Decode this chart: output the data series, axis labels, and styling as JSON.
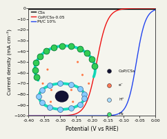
{
  "xlabel": "Potential (V vs RHE)",
  "ylabel": "Current density (mA cm⁻²)",
  "xlim": [
    -0.4,
    0.0
  ],
  "ylim": [
    -100,
    0
  ],
  "xticks": [
    -0.4,
    -0.35,
    -0.3,
    -0.25,
    -0.2,
    -0.15,
    -0.1,
    -0.05,
    0.0
  ],
  "yticks": [
    0,
    -10,
    -20,
    -30,
    -40,
    -50,
    -60,
    -70,
    -80,
    -90,
    -100
  ],
  "line_CSs_color": "#000000",
  "line_CoP_color": "#ee1111",
  "line_PtC_color": "#2244ee",
  "legend_entries": [
    "CSs",
    "CoP/CSs-0.05",
    "Pt/C 10%"
  ],
  "inset_legend": [
    "CoP/CSs",
    "e⁻",
    "H⁺",
    "H₂"
  ],
  "inset_dot_colors": [
    "#111133",
    "#ff7755",
    "#aaddff",
    "#44dd77"
  ],
  "arc_color": "#00ddbb",
  "green_dot_color": "#33cc55",
  "green_dot_edge": "#007733",
  "blue_dot_color": "#88ccff",
  "blue_dot_edge": "#336699",
  "center_color": "#111133",
  "orange_dot_color": "#ff7744",
  "background_color": "#f2f2ea",
  "axis_bg": "#f5f5ee"
}
